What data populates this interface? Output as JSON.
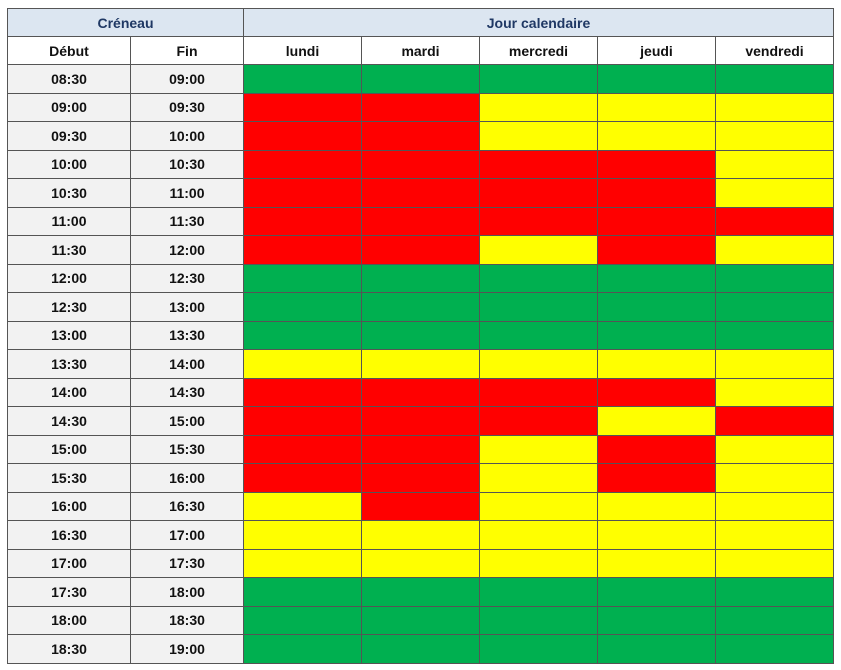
{
  "header": {
    "group_slot": "Créneau",
    "group_day": "Jour calendaire",
    "start": "Début",
    "end": "Fin",
    "days": [
      "lundi",
      "mardi",
      "mercredi",
      "jeudi",
      "vendredi"
    ]
  },
  "colors": {
    "free": "#00b050",
    "busy": "#ff0000",
    "partial": "#ffff00"
  },
  "rows": [
    {
      "start": "08:30",
      "end": "09:00",
      "cells": [
        "free",
        "free",
        "free",
        "free",
        "free"
      ]
    },
    {
      "start": "09:00",
      "end": "09:30",
      "cells": [
        "busy",
        "busy",
        "partial",
        "partial",
        "partial"
      ]
    },
    {
      "start": "09:30",
      "end": "10:00",
      "cells": [
        "busy",
        "busy",
        "partial",
        "partial",
        "partial"
      ]
    },
    {
      "start": "10:00",
      "end": "10:30",
      "cells": [
        "busy",
        "busy",
        "busy",
        "busy",
        "partial"
      ]
    },
    {
      "start": "10:30",
      "end": "11:00",
      "cells": [
        "busy",
        "busy",
        "busy",
        "busy",
        "partial"
      ]
    },
    {
      "start": "11:00",
      "end": "11:30",
      "cells": [
        "busy",
        "busy",
        "busy",
        "busy",
        "busy"
      ]
    },
    {
      "start": "11:30",
      "end": "12:00",
      "cells": [
        "busy",
        "busy",
        "partial",
        "busy",
        "partial"
      ]
    },
    {
      "start": "12:00",
      "end": "12:30",
      "cells": [
        "free",
        "free",
        "free",
        "free",
        "free"
      ]
    },
    {
      "start": "12:30",
      "end": "13:00",
      "cells": [
        "free",
        "free",
        "free",
        "free",
        "free"
      ]
    },
    {
      "start": "13:00",
      "end": "13:30",
      "cells": [
        "free",
        "free",
        "free",
        "free",
        "free"
      ]
    },
    {
      "start": "13:30",
      "end": "14:00",
      "cells": [
        "partial",
        "partial",
        "partial",
        "partial",
        "partial"
      ]
    },
    {
      "start": "14:00",
      "end": "14:30",
      "cells": [
        "busy",
        "busy",
        "busy",
        "busy",
        "partial"
      ]
    },
    {
      "start": "14:30",
      "end": "15:00",
      "cells": [
        "busy",
        "busy",
        "busy",
        "partial",
        "busy"
      ]
    },
    {
      "start": "15:00",
      "end": "15:30",
      "cells": [
        "busy",
        "busy",
        "partial",
        "busy",
        "partial"
      ]
    },
    {
      "start": "15:30",
      "end": "16:00",
      "cells": [
        "busy",
        "busy",
        "partial",
        "busy",
        "partial"
      ]
    },
    {
      "start": "16:00",
      "end": "16:30",
      "cells": [
        "partial",
        "busy",
        "partial",
        "partial",
        "partial"
      ]
    },
    {
      "start": "16:30",
      "end": "17:00",
      "cells": [
        "partial",
        "partial",
        "partial",
        "partial",
        "partial"
      ]
    },
    {
      "start": "17:00",
      "end": "17:30",
      "cells": [
        "partial",
        "partial",
        "partial",
        "partial",
        "partial"
      ]
    },
    {
      "start": "17:30",
      "end": "18:00",
      "cells": [
        "free",
        "free",
        "free",
        "free",
        "free"
      ]
    },
    {
      "start": "18:00",
      "end": "18:30",
      "cells": [
        "free",
        "free",
        "free",
        "free",
        "free"
      ]
    },
    {
      "start": "18:30",
      "end": "19:00",
      "cells": [
        "free",
        "free",
        "free",
        "free",
        "free"
      ]
    }
  ]
}
